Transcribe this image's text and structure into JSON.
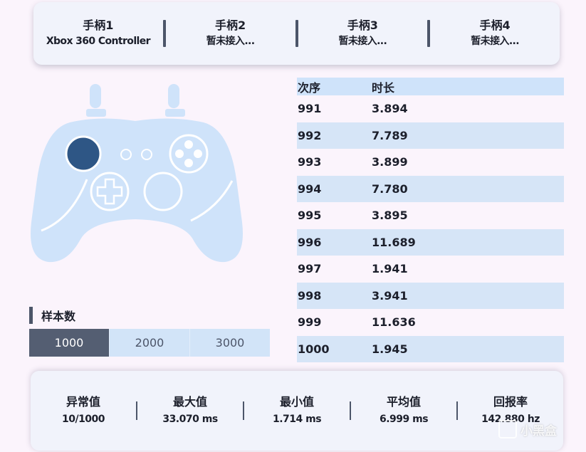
{
  "controllers": [
    {
      "name": "手柄1",
      "status": "Xbox 360 Controller"
    },
    {
      "name": "手柄2",
      "status": "暂未接入..."
    },
    {
      "name": "手柄3",
      "status": "暂未接入..."
    },
    {
      "name": "手柄4",
      "status": "暂未接入..."
    }
  ],
  "samples": {
    "label": "样本数",
    "options": [
      "1000",
      "2000",
      "3000"
    ],
    "selected": "1000"
  },
  "table": {
    "headers": [
      "次序",
      "时长"
    ],
    "rows": [
      [
        "991",
        "3.894"
      ],
      [
        "992",
        "7.789"
      ],
      [
        "993",
        "3.899"
      ],
      [
        "994",
        "7.780"
      ],
      [
        "995",
        "3.895"
      ],
      [
        "996",
        "11.689"
      ],
      [
        "997",
        "1.941"
      ],
      [
        "998",
        "3.941"
      ],
      [
        "999",
        "11.636"
      ],
      [
        "1000",
        "1.945"
      ]
    ]
  },
  "stats": [
    {
      "label": "异常值",
      "value": "10/1000"
    },
    {
      "label": "最大值",
      "value": "33.070 ms"
    },
    {
      "label": "最小值",
      "value": "1.714 ms"
    },
    {
      "label": "平均值",
      "value": "6.999 ms"
    },
    {
      "label": "回报率",
      "value": "142.880 hz"
    }
  ],
  "watermark": "小黑盒",
  "colors": {
    "pad_fill": "#cfe3fa",
    "active_stick": "#2e5685",
    "active_segment": "#545e72",
    "row_alt": "#d6e5f7"
  }
}
